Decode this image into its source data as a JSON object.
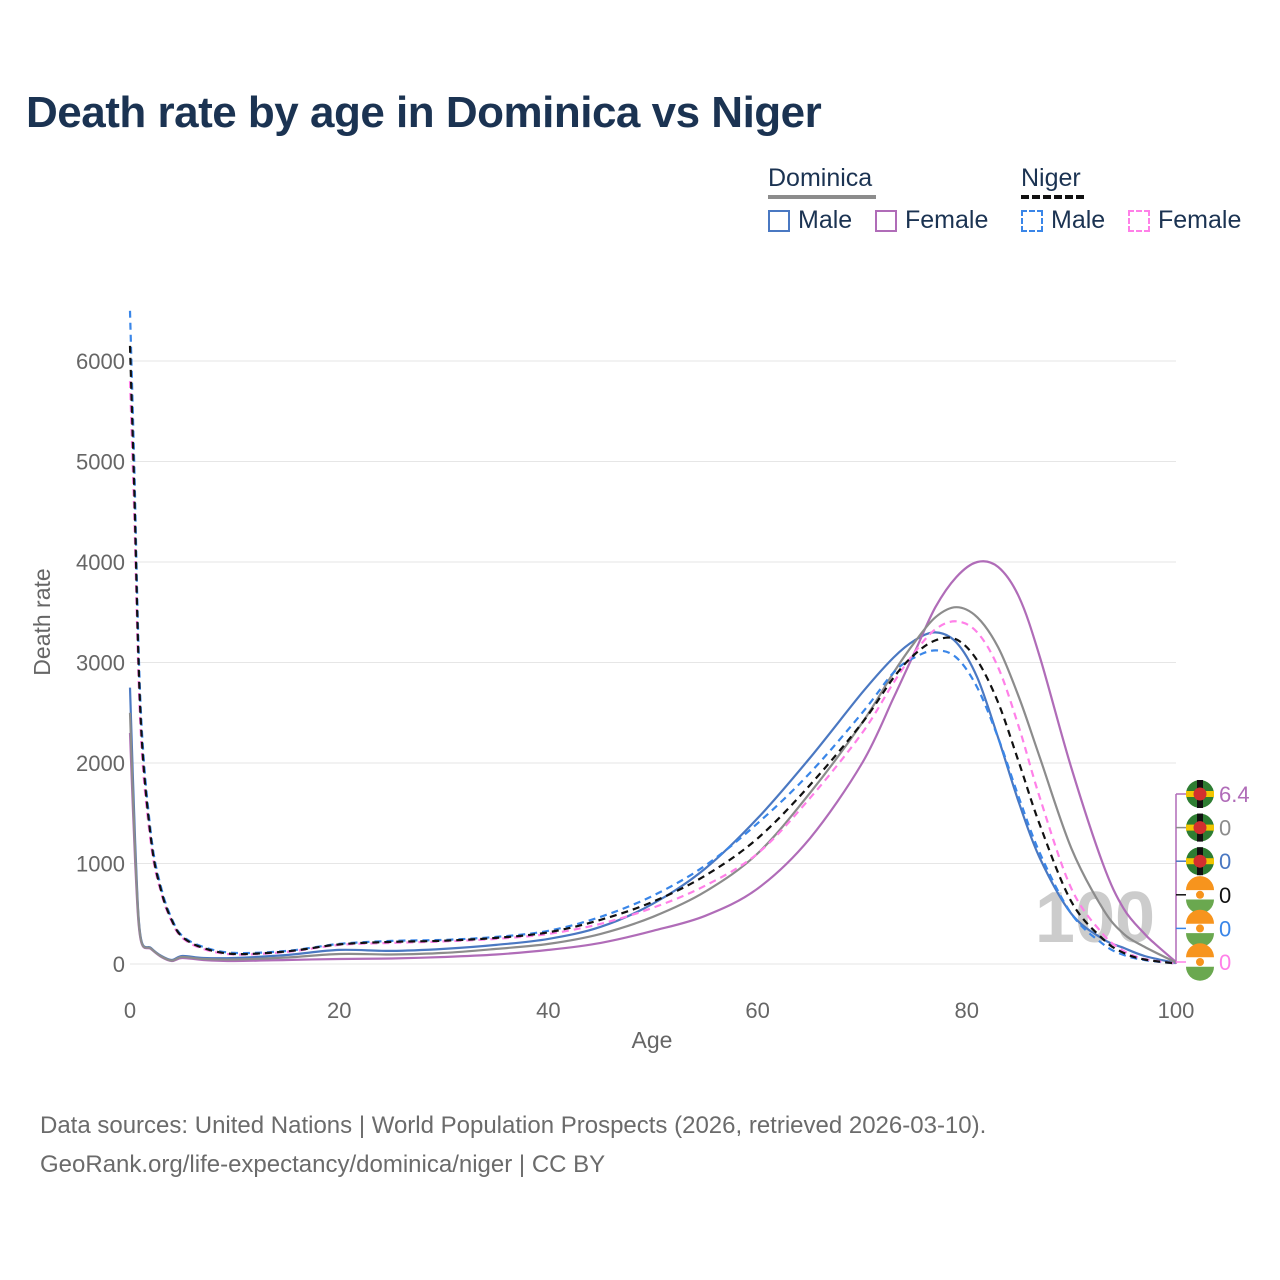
{
  "title": "Death rate by age in Dominica vs Niger",
  "legend": {
    "groups": [
      {
        "name": "Dominica",
        "line_color": "#8c8c8c",
        "line_style": "solid",
        "items": [
          {
            "label": "Male",
            "color": "#4a78c2",
            "style": "solid"
          },
          {
            "label": "Female",
            "color": "#b06cb8",
            "style": "solid"
          }
        ]
      },
      {
        "name": "Niger",
        "line_color": "#111111",
        "line_style": "dashed",
        "items": [
          {
            "label": "Male",
            "color": "#3a86e8",
            "style": "dashed"
          },
          {
            "label": "Female",
            "color": "#ff80e8",
            "style": "dashed"
          }
        ]
      }
    ]
  },
  "chart_data": {
    "type": "line",
    "xlabel": "Age",
    "ylabel": "Death rate",
    "xlim": [
      0,
      100
    ],
    "ylim": [
      0,
      6500
    ],
    "xticks": [
      0,
      20,
      40,
      60,
      80,
      100
    ],
    "yticks": [
      0,
      1000,
      2000,
      3000,
      4000,
      5000,
      6000
    ],
    "grid": true,
    "watermark": "100",
    "series": [
      {
        "name": "Dominica Male",
        "color": "#4a78c2",
        "dash": "",
        "width": 2.2,
        "points": [
          [
            0,
            2750
          ],
          [
            0.5,
            1200
          ],
          [
            1,
            280
          ],
          [
            2,
            160
          ],
          [
            3,
            80
          ],
          [
            4,
            40
          ],
          [
            5,
            80
          ],
          [
            7,
            60
          ],
          [
            10,
            60
          ],
          [
            15,
            90
          ],
          [
            20,
            140
          ],
          [
            25,
            130
          ],
          [
            30,
            150
          ],
          [
            35,
            190
          ],
          [
            40,
            250
          ],
          [
            45,
            370
          ],
          [
            50,
            600
          ],
          [
            55,
            950
          ],
          [
            60,
            1450
          ],
          [
            65,
            2050
          ],
          [
            70,
            2700
          ],
          [
            73,
            3050
          ],
          [
            75,
            3220
          ],
          [
            77,
            3300
          ],
          [
            79,
            3200
          ],
          [
            81,
            2850
          ],
          [
            83,
            2250
          ],
          [
            85,
            1600
          ],
          [
            87,
            1050
          ],
          [
            90,
            500
          ],
          [
            93,
            250
          ],
          [
            95,
            160
          ],
          [
            97,
            80
          ],
          [
            100,
            10
          ]
        ]
      },
      {
        "name": "Dominica Female",
        "color": "#b06cb8",
        "dash": "",
        "width": 2.2,
        "points": [
          [
            0,
            2300
          ],
          [
            0.5,
            1000
          ],
          [
            1,
            250
          ],
          [
            2,
            150
          ],
          [
            3,
            70
          ],
          [
            4,
            30
          ],
          [
            5,
            60
          ],
          [
            7,
            40
          ],
          [
            10,
            30
          ],
          [
            15,
            40
          ],
          [
            20,
            50
          ],
          [
            25,
            55
          ],
          [
            30,
            70
          ],
          [
            35,
            95
          ],
          [
            40,
            140
          ],
          [
            45,
            210
          ],
          [
            50,
            330
          ],
          [
            55,
            480
          ],
          [
            60,
            750
          ],
          [
            65,
            1250
          ],
          [
            70,
            2000
          ],
          [
            73,
            2650
          ],
          [
            75,
            3100
          ],
          [
            77,
            3550
          ],
          [
            79,
            3850
          ],
          [
            81,
            4000
          ],
          [
            83,
            3950
          ],
          [
            85,
            3650
          ],
          [
            87,
            3050
          ],
          [
            90,
            1950
          ],
          [
            93,
            1000
          ],
          [
            95,
            550
          ],
          [
            97,
            300
          ],
          [
            98,
            200
          ],
          [
            100,
            20
          ]
        ]
      },
      {
        "name": "Dominica Total",
        "color": "#8c8c8c",
        "dash": "",
        "width": 2.2,
        "points": [
          [
            0,
            2500
          ],
          [
            0.5,
            1100
          ],
          [
            1,
            265
          ],
          [
            2,
            155
          ],
          [
            3,
            75
          ],
          [
            4,
            35
          ],
          [
            5,
            70
          ],
          [
            7,
            50
          ],
          [
            10,
            45
          ],
          [
            15,
            65
          ],
          [
            20,
            100
          ],
          [
            25,
            95
          ],
          [
            30,
            110
          ],
          [
            35,
            150
          ],
          [
            40,
            200
          ],
          [
            45,
            300
          ],
          [
            50,
            470
          ],
          [
            55,
            720
          ],
          [
            60,
            1100
          ],
          [
            65,
            1700
          ],
          [
            70,
            2400
          ],
          [
            73,
            2900
          ],
          [
            75,
            3200
          ],
          [
            77,
            3450
          ],
          [
            79,
            3550
          ],
          [
            81,
            3450
          ],
          [
            83,
            3150
          ],
          [
            85,
            2650
          ],
          [
            87,
            2050
          ],
          [
            90,
            1150
          ],
          [
            93,
            550
          ],
          [
            95,
            300
          ],
          [
            97,
            170
          ],
          [
            100,
            15
          ]
        ]
      },
      {
        "name": "Niger Male",
        "color": "#3a86e8",
        "dash": "7,5",
        "width": 2.2,
        "points": [
          [
            0,
            6500
          ],
          [
            0.4,
            5000
          ],
          [
            1,
            2600
          ],
          [
            2,
            1300
          ],
          [
            3,
            750
          ],
          [
            4,
            450
          ],
          [
            5,
            280
          ],
          [
            7,
            170
          ],
          [
            10,
            110
          ],
          [
            15,
            130
          ],
          [
            20,
            200
          ],
          [
            25,
            230
          ],
          [
            30,
            240
          ],
          [
            35,
            270
          ],
          [
            40,
            330
          ],
          [
            45,
            470
          ],
          [
            50,
            680
          ],
          [
            55,
            980
          ],
          [
            60,
            1400
          ],
          [
            65,
            1900
          ],
          [
            70,
            2500
          ],
          [
            73,
            2900
          ],
          [
            75,
            3050
          ],
          [
            77,
            3120
          ],
          [
            79,
            3050
          ],
          [
            81,
            2750
          ],
          [
            83,
            2250
          ],
          [
            85,
            1650
          ],
          [
            87,
            1100
          ],
          [
            90,
            500
          ],
          [
            93,
            200
          ],
          [
            95,
            90
          ],
          [
            97,
            40
          ],
          [
            100,
            5
          ]
        ]
      },
      {
        "name": "Niger Female",
        "color": "#ff80e8",
        "dash": "7,5",
        "width": 2.2,
        "points": [
          [
            0,
            5800
          ],
          [
            0.4,
            4500
          ],
          [
            1,
            2350
          ],
          [
            2,
            1200
          ],
          [
            3,
            700
          ],
          [
            4,
            420
          ],
          [
            5,
            260
          ],
          [
            7,
            150
          ],
          [
            10,
            95
          ],
          [
            15,
            120
          ],
          [
            20,
            190
          ],
          [
            25,
            210
          ],
          [
            30,
            225
          ],
          [
            35,
            250
          ],
          [
            40,
            300
          ],
          [
            45,
            400
          ],
          [
            50,
            560
          ],
          [
            55,
            780
          ],
          [
            60,
            1100
          ],
          [
            65,
            1650
          ],
          [
            70,
            2300
          ],
          [
            73,
            2800
          ],
          [
            75,
            3100
          ],
          [
            77,
            3330
          ],
          [
            79,
            3410
          ],
          [
            81,
            3300
          ],
          [
            83,
            2950
          ],
          [
            85,
            2350
          ],
          [
            87,
            1650
          ],
          [
            90,
            750
          ],
          [
            93,
            300
          ],
          [
            95,
            130
          ],
          [
            97,
            50
          ],
          [
            100,
            5
          ]
        ]
      },
      {
        "name": "Niger Total",
        "color": "#111111",
        "dash": "7,5",
        "width": 2.2,
        "points": [
          [
            0,
            6150
          ],
          [
            0.4,
            4750
          ],
          [
            1,
            2480
          ],
          [
            2,
            1250
          ],
          [
            3,
            720
          ],
          [
            4,
            435
          ],
          [
            5,
            270
          ],
          [
            7,
            160
          ],
          [
            10,
            100
          ],
          [
            15,
            125
          ],
          [
            20,
            195
          ],
          [
            25,
            220
          ],
          [
            30,
            232
          ],
          [
            35,
            260
          ],
          [
            40,
            315
          ],
          [
            45,
            440
          ],
          [
            50,
            620
          ],
          [
            55,
            880
          ],
          [
            60,
            1250
          ],
          [
            65,
            1780
          ],
          [
            70,
            2400
          ],
          [
            73,
            2850
          ],
          [
            75,
            3080
          ],
          [
            77,
            3220
          ],
          [
            79,
            3230
          ],
          [
            81,
            3020
          ],
          [
            83,
            2600
          ],
          [
            85,
            2000
          ],
          [
            87,
            1380
          ],
          [
            90,
            620
          ],
          [
            93,
            250
          ],
          [
            95,
            110
          ],
          [
            97,
            45
          ],
          [
            100,
            5
          ]
        ]
      }
    ],
    "end_labels": [
      {
        "country": "Dominica",
        "value": "6.4",
        "color": "#b06cb8"
      },
      {
        "country": "Dominica",
        "value": "0",
        "color": "#8c8c8c"
      },
      {
        "country": "Dominica",
        "value": "0",
        "color": "#4a78c2"
      },
      {
        "country": "Niger",
        "value": "0",
        "color": "#111111"
      },
      {
        "country": "Niger",
        "value": "0",
        "color": "#3a86e8"
      },
      {
        "country": "Niger",
        "value": "0",
        "color": "#ff80e8"
      }
    ]
  },
  "source": {
    "line1": "Data sources: United Nations | World Population Prospects (2026, retrieved 2026-03-10).",
    "line2": "GeoRank.org/life-expectancy/dominica/niger | CC BY"
  }
}
